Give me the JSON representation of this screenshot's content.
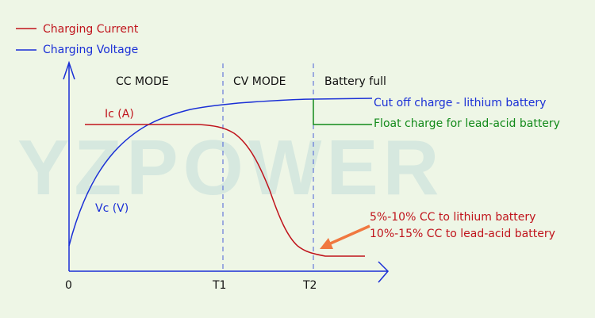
{
  "watermark": "YZPOWER",
  "legend": {
    "current": {
      "label": "Charging Current",
      "color": "#c0141c"
    },
    "voltage": {
      "label": "Charging Voltage",
      "color": "#1a2fd6"
    }
  },
  "zones": {
    "cc": "CC MODE",
    "cv": "CV MODE",
    "full": "Battery full"
  },
  "curve_labels": {
    "current": "Ic (A)",
    "voltage": "Vc (V)"
  },
  "axis": {
    "origin": "0",
    "t1": "T1",
    "t2": "T2"
  },
  "annotations": {
    "cutoff": {
      "text": "Cut off charge - lithium battery",
      "color": "#1a2fd6"
    },
    "float": {
      "text": "Float charge for lead-acid battery",
      "color": "#128a1a"
    },
    "lithium_cc": {
      "text": "5%-10% CC to lithium battery",
      "color": "#c0141c"
    },
    "lead_cc": {
      "text": "10%-15% CC to lead-acid battery",
      "color": "#c0141c"
    },
    "arrow_color": "#f07840"
  }
}
